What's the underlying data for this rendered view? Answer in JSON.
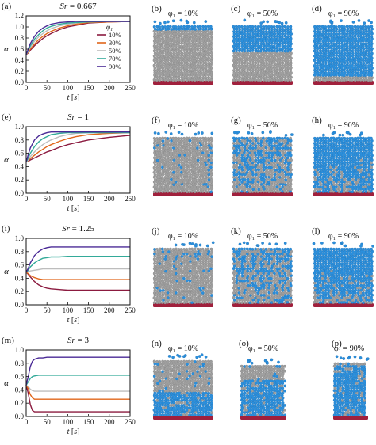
{
  "legend": {
    "title": "φ₁",
    "entries": [
      "10%",
      "30%",
      "50%",
      "70%",
      "90%"
    ]
  },
  "colors": {
    "s10": "#8b1a3f",
    "s30": "#e0661a",
    "s50": "#bdbdbd",
    "s70": "#33aa99",
    "s90": "#4a2a96",
    "grey_particle": "#9e9e9e",
    "blue_particle": "#2b8fdc",
    "base": "#a0203c"
  },
  "chart_data": [
    {
      "type": "line",
      "panel_label": "(a)",
      "title": "Sr = 0.667",
      "xlabel": "t [s]",
      "ylabel": "α",
      "xlim": [
        0,
        250
      ],
      "ylim": [
        0,
        1.2
      ],
      "xticks": [
        "0",
        "50",
        "100",
        "150",
        "200",
        "250"
      ],
      "yticks": [
        "0.0",
        "0.2",
        "0.4",
        "0.6",
        "0.8",
        "1.0",
        "1.2"
      ],
      "x": [
        0,
        5,
        10,
        20,
        30,
        40,
        50,
        60,
        80,
        100,
        120,
        150,
        200,
        250
      ],
      "series": [
        {
          "name": "10%",
          "values": [
            0.5,
            0.53,
            0.58,
            0.66,
            0.73,
            0.79,
            0.84,
            0.88,
            0.95,
            1.0,
            1.03,
            1.07,
            1.09,
            1.1
          ]
        },
        {
          "name": "30%",
          "values": [
            0.5,
            0.54,
            0.6,
            0.69,
            0.77,
            0.83,
            0.88,
            0.92,
            0.98,
            1.02,
            1.05,
            1.08,
            1.09,
            1.1
          ]
        },
        {
          "name": "50%",
          "values": [
            0.5,
            0.56,
            0.63,
            0.74,
            0.82,
            0.88,
            0.93,
            0.97,
            1.02,
            1.05,
            1.07,
            1.09,
            1.1,
            1.1
          ]
        },
        {
          "name": "70%",
          "values": [
            0.5,
            0.58,
            0.66,
            0.78,
            0.86,
            0.93,
            0.98,
            1.01,
            1.05,
            1.07,
            1.08,
            1.09,
            1.1,
            1.1
          ]
        },
        {
          "name": "90%",
          "values": [
            0.5,
            0.6,
            0.7,
            0.83,
            0.92,
            0.98,
            1.02,
            1.05,
            1.08,
            1.09,
            1.1,
            1.1,
            1.1,
            1.1
          ]
        }
      ]
    },
    {
      "type": "line",
      "panel_label": "(e)",
      "title": "Sr = 1",
      "xlabel": "t [s]",
      "ylabel": "α",
      "xlim": [
        0,
        250
      ],
      "ylim": [
        0,
        1.0
      ],
      "xticks": [
        "0",
        "50",
        "100",
        "150",
        "200",
        "250"
      ],
      "yticks": [
        "0.0",
        "0.2",
        "0.4",
        "0.6",
        "0.8",
        "1.0"
      ],
      "x": [
        0,
        5,
        10,
        20,
        30,
        40,
        50,
        60,
        80,
        100,
        120,
        150,
        200,
        250
      ],
      "series": [
        {
          "name": "10%",
          "values": [
            0.47,
            0.48,
            0.5,
            0.53,
            0.56,
            0.59,
            0.62,
            0.64,
            0.69,
            0.73,
            0.76,
            0.8,
            0.84,
            0.87
          ]
        },
        {
          "name": "30%",
          "values": [
            0.47,
            0.49,
            0.52,
            0.57,
            0.62,
            0.66,
            0.7,
            0.73,
            0.78,
            0.82,
            0.85,
            0.88,
            0.9,
            0.91
          ]
        },
        {
          "name": "50%",
          "values": [
            0.47,
            0.5,
            0.55,
            0.62,
            0.68,
            0.73,
            0.77,
            0.8,
            0.85,
            0.88,
            0.9,
            0.91,
            0.91,
            0.91
          ]
        },
        {
          "name": "70%",
          "values": [
            0.47,
            0.53,
            0.6,
            0.7,
            0.77,
            0.82,
            0.85,
            0.88,
            0.9,
            0.91,
            0.91,
            0.91,
            0.91,
            0.91
          ]
        },
        {
          "name": "90%",
          "values": [
            0.47,
            0.58,
            0.68,
            0.8,
            0.86,
            0.89,
            0.91,
            0.92,
            0.92,
            0.92,
            0.92,
            0.92,
            0.92,
            0.92
          ]
        }
      ]
    },
    {
      "type": "line",
      "panel_label": "(i)",
      "title": "Sr = 1.25",
      "xlabel": "t [s]",
      "ylabel": "α",
      "xlim": [
        0,
        250
      ],
      "ylim": [
        0,
        1.0
      ],
      "xticks": [
        "0",
        "50",
        "100",
        "150",
        "200",
        "250"
      ],
      "yticks": [
        "0.0",
        "0.2",
        "0.4",
        "0.6",
        "0.8",
        "1.0"
      ],
      "x": [
        0,
        5,
        10,
        20,
        30,
        40,
        50,
        60,
        80,
        100,
        120,
        150,
        200,
        250
      ],
      "series": [
        {
          "name": "10%",
          "values": [
            0.49,
            0.46,
            0.42,
            0.35,
            0.3,
            0.27,
            0.25,
            0.24,
            0.23,
            0.22,
            0.22,
            0.22,
            0.22,
            0.22
          ]
        },
        {
          "name": "30%",
          "values": [
            0.49,
            0.47,
            0.44,
            0.41,
            0.39,
            0.38,
            0.38,
            0.38,
            0.38,
            0.38,
            0.38,
            0.38,
            0.38,
            0.38
          ]
        },
        {
          "name": "50%",
          "values": [
            0.49,
            0.5,
            0.51,
            0.52,
            0.53,
            0.54,
            0.54,
            0.54,
            0.54,
            0.54,
            0.54,
            0.54,
            0.54,
            0.54
          ]
        },
        {
          "name": "70%",
          "values": [
            0.49,
            0.52,
            0.57,
            0.63,
            0.67,
            0.7,
            0.71,
            0.72,
            0.72,
            0.73,
            0.73,
            0.73,
            0.73,
            0.73
          ]
        },
        {
          "name": "90%",
          "values": [
            0.49,
            0.55,
            0.63,
            0.74,
            0.8,
            0.84,
            0.86,
            0.87,
            0.87,
            0.87,
            0.87,
            0.87,
            0.87,
            0.87
          ]
        }
      ]
    },
    {
      "type": "line",
      "panel_label": "(m)",
      "title": "Sr = 3",
      "xlabel": "t [s]",
      "ylabel": "α",
      "xlim": [
        0,
        250
      ],
      "ylim": [
        0,
        1.0
      ],
      "xticks": [
        "0",
        "50",
        "100",
        "150",
        "200",
        "250"
      ],
      "yticks": [
        "0.0",
        "0.2",
        "0.4",
        "0.6",
        "0.8",
        "1.0"
      ],
      "x": [
        0,
        5,
        10,
        15,
        20,
        30,
        40,
        50,
        60,
        80,
        100,
        150,
        200,
        250
      ],
      "series": [
        {
          "name": "10%",
          "values": [
            0.47,
            0.35,
            0.18,
            0.09,
            0.07,
            0.07,
            0.07,
            0.07,
            0.07,
            0.07,
            0.07,
            0.07,
            0.07,
            0.07
          ]
        },
        {
          "name": "30%",
          "values": [
            0.47,
            0.42,
            0.33,
            0.28,
            0.26,
            0.26,
            0.26,
            0.26,
            0.26,
            0.26,
            0.26,
            0.26,
            0.26,
            0.26
          ]
        },
        {
          "name": "50%",
          "values": [
            0.47,
            0.45,
            0.41,
            0.39,
            0.38,
            0.38,
            0.38,
            0.38,
            0.38,
            0.38,
            0.38,
            0.38,
            0.38,
            0.38
          ]
        },
        {
          "name": "70%",
          "values": [
            0.47,
            0.52,
            0.57,
            0.6,
            0.61,
            0.62,
            0.62,
            0.62,
            0.62,
            0.62,
            0.62,
            0.62,
            0.62,
            0.62
          ]
        },
        {
          "name": "90%",
          "values": [
            0.47,
            0.6,
            0.75,
            0.83,
            0.86,
            0.88,
            0.88,
            0.89,
            0.89,
            0.89,
            0.89,
            0.89,
            0.89,
            0.89
          ]
        }
      ]
    }
  ],
  "snapshots": [
    {
      "label": "(b)",
      "phi": "φ₁ = 10%",
      "mix": 0.1,
      "mode": "layered"
    },
    {
      "label": "(c)",
      "phi": "φ₁ = 50%",
      "mix": 0.5,
      "mode": "layered"
    },
    {
      "label": "(d)",
      "phi": "φ₁ = 90%",
      "mix": 0.9,
      "mode": "layered"
    },
    {
      "label": "(f)",
      "phi": "φ₁ = 10%",
      "mix": 0.1,
      "mode": "mixed"
    },
    {
      "label": "(g)",
      "phi": "φ₁ = 50%",
      "mix": 0.5,
      "mode": "mixed"
    },
    {
      "label": "(h)",
      "phi": "φ₁ = 90%",
      "mix": 0.9,
      "mode": "mixed"
    },
    {
      "label": "(j)",
      "phi": "φ₁ = 10%",
      "mix": 0.1,
      "mode": "mixed"
    },
    {
      "label": "(k)",
      "phi": "φ₁ = 50%",
      "mix": 0.5,
      "mode": "mixed"
    },
    {
      "label": "(l)",
      "phi": "φ₁ = 90%",
      "mix": 0.9,
      "mode": "mixed"
    },
    {
      "label": "(n)",
      "phi": "φ₁ = 10%",
      "mix": 0.1,
      "mode": "bottom"
    },
    {
      "label": "(o)",
      "phi": "φ₁ = 50%",
      "mix": 0.5,
      "mode": "bottom"
    },
    {
      "label": "(p)",
      "phi": "φ₁ = 90%",
      "mix": 0.9,
      "mode": "bottom"
    }
  ]
}
